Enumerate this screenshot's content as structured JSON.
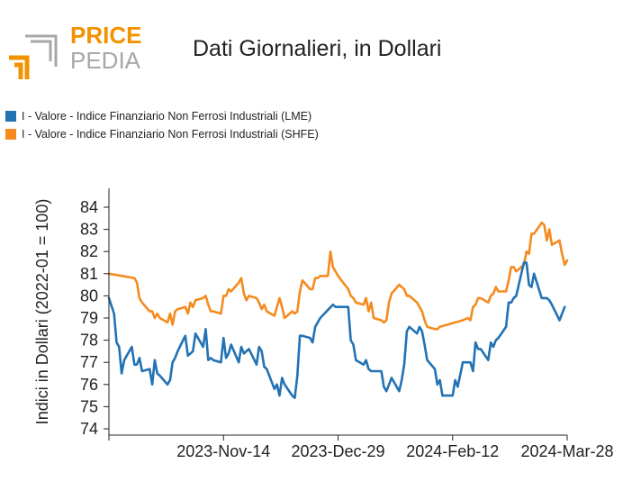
{
  "logo": {
    "word1": "PRICE",
    "word2": "PEDIA",
    "accent_color": "#f39200",
    "gray_color": "#a8a8a8"
  },
  "chart_data": {
    "type": "line",
    "title": "Dati Giornalieri, in Dollari",
    "ylabel": "Indici in Dollari (2022-01 = 100)",
    "xlabel": "",
    "ylim": [
      74,
      85
    ],
    "yticks": [
      74,
      75,
      76,
      77,
      78,
      79,
      80,
      81,
      82,
      83,
      84
    ],
    "xlim": [
      "2023-09-30",
      "2024-03-28"
    ],
    "xticks": [
      "2023-Nov-14",
      "2023-Dec-29",
      "2024-Feb-12",
      "2024-Mar-28"
    ],
    "xtick_dates": [
      "2023-11-14",
      "2023-12-29",
      "2024-02-12",
      "2024-03-28"
    ],
    "legend_placement": "top-left",
    "grid": false,
    "series": [
      {
        "name": "I - Valore - Indice Finanziario Non Ferrosi Industriali (LME)",
        "color": "#2272b4",
        "points": [
          [
            "2023-09-30",
            79.9
          ],
          [
            "2023-10-02",
            79.2
          ],
          [
            "2023-10-03",
            77.9
          ],
          [
            "2023-10-04",
            77.7
          ],
          [
            "2023-10-05",
            76.5
          ],
          [
            "2023-10-06",
            77.1
          ],
          [
            "2023-10-09",
            77.7
          ],
          [
            "2023-10-10",
            76.9
          ],
          [
            "2023-10-11",
            76.9
          ],
          [
            "2023-10-12",
            77.2
          ],
          [
            "2023-10-13",
            76.6
          ],
          [
            "2023-10-16",
            76.7
          ],
          [
            "2023-10-17",
            76.0
          ],
          [
            "2023-10-18",
            77.1
          ],
          [
            "2023-10-19",
            76.5
          ],
          [
            "2023-10-20",
            76.4
          ],
          [
            "2023-10-23",
            76.0
          ],
          [
            "2023-10-24",
            76.2
          ],
          [
            "2023-10-25",
            77.0
          ],
          [
            "2023-10-26",
            77.2
          ],
          [
            "2023-10-27",
            77.5
          ],
          [
            "2023-10-30",
            78.2
          ],
          [
            "2023-10-31",
            77.3
          ],
          [
            "2023-11-01",
            77.4
          ],
          [
            "2023-11-02",
            77.5
          ],
          [
            "2023-11-03",
            78.3
          ],
          [
            "2023-11-06",
            77.7
          ],
          [
            "2023-11-07",
            78.5
          ],
          [
            "2023-11-08",
            77.1
          ],
          [
            "2023-11-09",
            77.2
          ],
          [
            "2023-11-10",
            77.1
          ],
          [
            "2023-11-13",
            77.0
          ],
          [
            "2023-11-14",
            78.1
          ],
          [
            "2023-11-15",
            77.2
          ],
          [
            "2023-11-16",
            77.4
          ],
          [
            "2023-11-17",
            77.8
          ],
          [
            "2023-11-20",
            77.0
          ],
          [
            "2023-11-21",
            77.7
          ],
          [
            "2023-11-22",
            77.4
          ],
          [
            "2023-11-23",
            77.5
          ],
          [
            "2023-11-24",
            77.6
          ],
          [
            "2023-11-27",
            76.9
          ],
          [
            "2023-11-28",
            77.7
          ],
          [
            "2023-11-29",
            77.5
          ],
          [
            "2023-11-30",
            76.8
          ],
          [
            "2023-12-01",
            76.7
          ],
          [
            "2023-12-04",
            75.8
          ],
          [
            "2023-12-05",
            76.0
          ],
          [
            "2023-12-06",
            75.5
          ],
          [
            "2023-12-07",
            76.3
          ],
          [
            "2023-12-08",
            76.0
          ],
          [
            "2023-12-11",
            75.5
          ],
          [
            "2023-12-12",
            75.4
          ],
          [
            "2023-12-13",
            76.4
          ],
          [
            "2023-12-14",
            78.2
          ],
          [
            "2023-12-15",
            78.2
          ],
          [
            "2023-12-18",
            78.1
          ],
          [
            "2023-12-19",
            77.9
          ],
          [
            "2023-12-20",
            78.6
          ],
          [
            "2023-12-22",
            79.0
          ],
          [
            "2023-12-27",
            79.6
          ],
          [
            "2023-12-28",
            79.5
          ],
          [
            "2024-01-02",
            79.5
          ],
          [
            "2024-01-03",
            78.0
          ],
          [
            "2024-01-04",
            77.8
          ],
          [
            "2024-01-05",
            77.1
          ],
          [
            "2024-01-08",
            76.9
          ],
          [
            "2024-01-09",
            77.1
          ],
          [
            "2024-01-10",
            76.7
          ],
          [
            "2024-01-11",
            76.6
          ],
          [
            "2024-01-12",
            76.6
          ],
          [
            "2024-01-15",
            76.6
          ],
          [
            "2024-01-16",
            75.9
          ],
          [
            "2024-01-17",
            75.7
          ],
          [
            "2024-01-18",
            76.0
          ],
          [
            "2024-01-19",
            76.3
          ],
          [
            "2024-01-22",
            75.7
          ],
          [
            "2024-01-23",
            76.2
          ],
          [
            "2024-01-24",
            76.9
          ],
          [
            "2024-01-25",
            78.4
          ],
          [
            "2024-01-26",
            78.6
          ],
          [
            "2024-01-29",
            78.3
          ],
          [
            "2024-01-30",
            78.6
          ],
          [
            "2024-01-31",
            78.4
          ],
          [
            "2024-02-01",
            77.8
          ],
          [
            "2024-02-02",
            77.1
          ],
          [
            "2024-02-05",
            76.7
          ],
          [
            "2024-02-06",
            76.0
          ],
          [
            "2024-02-07",
            76.2
          ],
          [
            "2024-02-08",
            75.5
          ],
          [
            "2024-02-09",
            75.5
          ],
          [
            "2024-02-12",
            75.5
          ],
          [
            "2024-02-13",
            76.2
          ],
          [
            "2024-02-14",
            75.9
          ],
          [
            "2024-02-16",
            77.0
          ],
          [
            "2024-02-19",
            77.0
          ],
          [
            "2024-02-20",
            76.6
          ],
          [
            "2024-02-21",
            77.9
          ],
          [
            "2024-02-22",
            77.6
          ],
          [
            "2024-02-23",
            77.6
          ],
          [
            "2024-02-26",
            77.1
          ],
          [
            "2024-02-27",
            77.9
          ],
          [
            "2024-02-28",
            77.7
          ],
          [
            "2024-02-29",
            78.0
          ],
          [
            "2024-03-01",
            78.1
          ],
          [
            "2024-03-04",
            78.6
          ],
          [
            "2024-03-05",
            79.7
          ],
          [
            "2024-03-06",
            79.7
          ],
          [
            "2024-03-07",
            79.9
          ],
          [
            "2024-03-08",
            80.0
          ],
          [
            "2024-03-11",
            81.5
          ],
          [
            "2024-03-12",
            81.5
          ],
          [
            "2024-03-13",
            80.5
          ],
          [
            "2024-03-14",
            80.4
          ],
          [
            "2024-03-15",
            81.0
          ],
          [
            "2024-03-18",
            79.9
          ],
          [
            "2024-03-20",
            79.9
          ],
          [
            "2024-03-21",
            79.8
          ],
          [
            "2024-03-22",
            79.6
          ],
          [
            "2024-03-25",
            78.9
          ],
          [
            "2024-03-27",
            79.5
          ]
        ]
      },
      {
        "name": "I - Valore - Indice Finanziario Non Ferrosi Industriali (SHFE)",
        "color": "#f58b1f",
        "points": [
          [
            "2023-09-30",
            81.0
          ],
          [
            "2023-10-10",
            80.8
          ],
          [
            "2023-10-11",
            80.6
          ],
          [
            "2023-10-12",
            79.9
          ],
          [
            "2023-10-13",
            79.7
          ],
          [
            "2023-10-16",
            79.3
          ],
          [
            "2023-10-17",
            79.3
          ],
          [
            "2023-10-18",
            79.0
          ],
          [
            "2023-10-19",
            79.2
          ],
          [
            "2023-10-20",
            79.0
          ],
          [
            "2023-10-23",
            78.8
          ],
          [
            "2023-10-24",
            79.2
          ],
          [
            "2023-10-25",
            78.7
          ],
          [
            "2023-10-26",
            79.3
          ],
          [
            "2023-10-27",
            79.4
          ],
          [
            "2023-10-30",
            79.5
          ],
          [
            "2023-10-31",
            79.2
          ],
          [
            "2023-11-01",
            79.7
          ],
          [
            "2023-11-02",
            79.5
          ],
          [
            "2023-11-03",
            79.8
          ],
          [
            "2023-11-06",
            79.9
          ],
          [
            "2023-11-07",
            80.0
          ],
          [
            "2023-11-08",
            79.6
          ],
          [
            "2023-11-09",
            79.3
          ],
          [
            "2023-11-10",
            79.3
          ],
          [
            "2023-11-13",
            79.2
          ],
          [
            "2023-11-14",
            80.0
          ],
          [
            "2023-11-15",
            80.0
          ],
          [
            "2023-11-16",
            80.3
          ],
          [
            "2023-11-17",
            80.2
          ],
          [
            "2023-11-20",
            80.6
          ],
          [
            "2023-11-21",
            80.8
          ],
          [
            "2023-11-22",
            80.1
          ],
          [
            "2023-11-23",
            79.8
          ],
          [
            "2023-11-24",
            80.0
          ],
          [
            "2023-11-27",
            79.9
          ],
          [
            "2023-11-28",
            79.7
          ],
          [
            "2023-11-29",
            79.4
          ],
          [
            "2023-11-30",
            79.6
          ],
          [
            "2023-12-01",
            79.3
          ],
          [
            "2023-12-04",
            79.1
          ],
          [
            "2023-12-05",
            79.5
          ],
          [
            "2023-12-06",
            79.9
          ],
          [
            "2023-12-07",
            79.5
          ],
          [
            "2023-12-08",
            79.0
          ],
          [
            "2023-12-11",
            79.3
          ],
          [
            "2023-12-12",
            79.2
          ],
          [
            "2023-12-13",
            79.3
          ],
          [
            "2023-12-14",
            80.2
          ],
          [
            "2023-12-15",
            80.7
          ],
          [
            "2023-12-18",
            80.3
          ],
          [
            "2023-12-19",
            80.3
          ],
          [
            "2023-12-20",
            80.8
          ],
          [
            "2023-12-21",
            80.8
          ],
          [
            "2023-12-22",
            80.9
          ],
          [
            "2023-12-25",
            80.9
          ],
          [
            "2023-12-26",
            82.0
          ],
          [
            "2023-12-27",
            81.3
          ],
          [
            "2023-12-28",
            81.1
          ],
          [
            "2023-12-29",
            80.9
          ],
          [
            "2024-01-02",
            80.3
          ],
          [
            "2024-01-03",
            80.0
          ],
          [
            "2024-01-04",
            79.9
          ],
          [
            "2024-01-05",
            79.7
          ],
          [
            "2024-01-08",
            79.6
          ],
          [
            "2024-01-09",
            79.9
          ],
          [
            "2024-01-10",
            79.3
          ],
          [
            "2024-01-11",
            79.7
          ],
          [
            "2024-01-12",
            79.0
          ],
          [
            "2024-01-15",
            78.9
          ],
          [
            "2024-01-16",
            78.8
          ],
          [
            "2024-01-17",
            78.9
          ],
          [
            "2024-01-18",
            79.7
          ],
          [
            "2024-01-19",
            80.1
          ],
          [
            "2024-01-22",
            80.5
          ],
          [
            "2024-01-23",
            80.4
          ],
          [
            "2024-01-24",
            80.3
          ],
          [
            "2024-01-25",
            80.0
          ],
          [
            "2024-01-26",
            80.0
          ],
          [
            "2024-01-29",
            79.7
          ],
          [
            "2024-01-30",
            79.5
          ],
          [
            "2024-01-31",
            79.3
          ],
          [
            "2024-02-01",
            78.9
          ],
          [
            "2024-02-02",
            78.6
          ],
          [
            "2024-02-05",
            78.5
          ],
          [
            "2024-02-06",
            78.5
          ],
          [
            "2024-02-07",
            78.6
          ],
          [
            "2024-02-16",
            78.9
          ],
          [
            "2024-02-18",
            79.0
          ],
          [
            "2024-02-19",
            78.9
          ],
          [
            "2024-02-20",
            79.5
          ],
          [
            "2024-02-21",
            79.6
          ],
          [
            "2024-02-22",
            79.9
          ],
          [
            "2024-02-23",
            79.9
          ],
          [
            "2024-02-26",
            79.7
          ],
          [
            "2024-02-27",
            80.0
          ],
          [
            "2024-02-28",
            80.1
          ],
          [
            "2024-02-29",
            80.4
          ],
          [
            "2024-03-01",
            80.2
          ],
          [
            "2024-03-04",
            80.2
          ],
          [
            "2024-03-05",
            80.7
          ],
          [
            "2024-03-06",
            81.3
          ],
          [
            "2024-03-07",
            81.3
          ],
          [
            "2024-03-08",
            81.1
          ],
          [
            "2024-03-11",
            81.4
          ],
          [
            "2024-03-12",
            82.0
          ],
          [
            "2024-03-13",
            81.9
          ],
          [
            "2024-03-14",
            82.8
          ],
          [
            "2024-03-15",
            82.8
          ],
          [
            "2024-03-18",
            83.3
          ],
          [
            "2024-03-19",
            83.2
          ],
          [
            "2024-03-20",
            82.5
          ],
          [
            "2024-03-21",
            83.0
          ],
          [
            "2024-03-22",
            82.3
          ],
          [
            "2024-03-25",
            82.5
          ],
          [
            "2024-03-26",
            81.9
          ],
          [
            "2024-03-27",
            81.4
          ],
          [
            "2024-03-28",
            81.6
          ]
        ]
      }
    ]
  }
}
